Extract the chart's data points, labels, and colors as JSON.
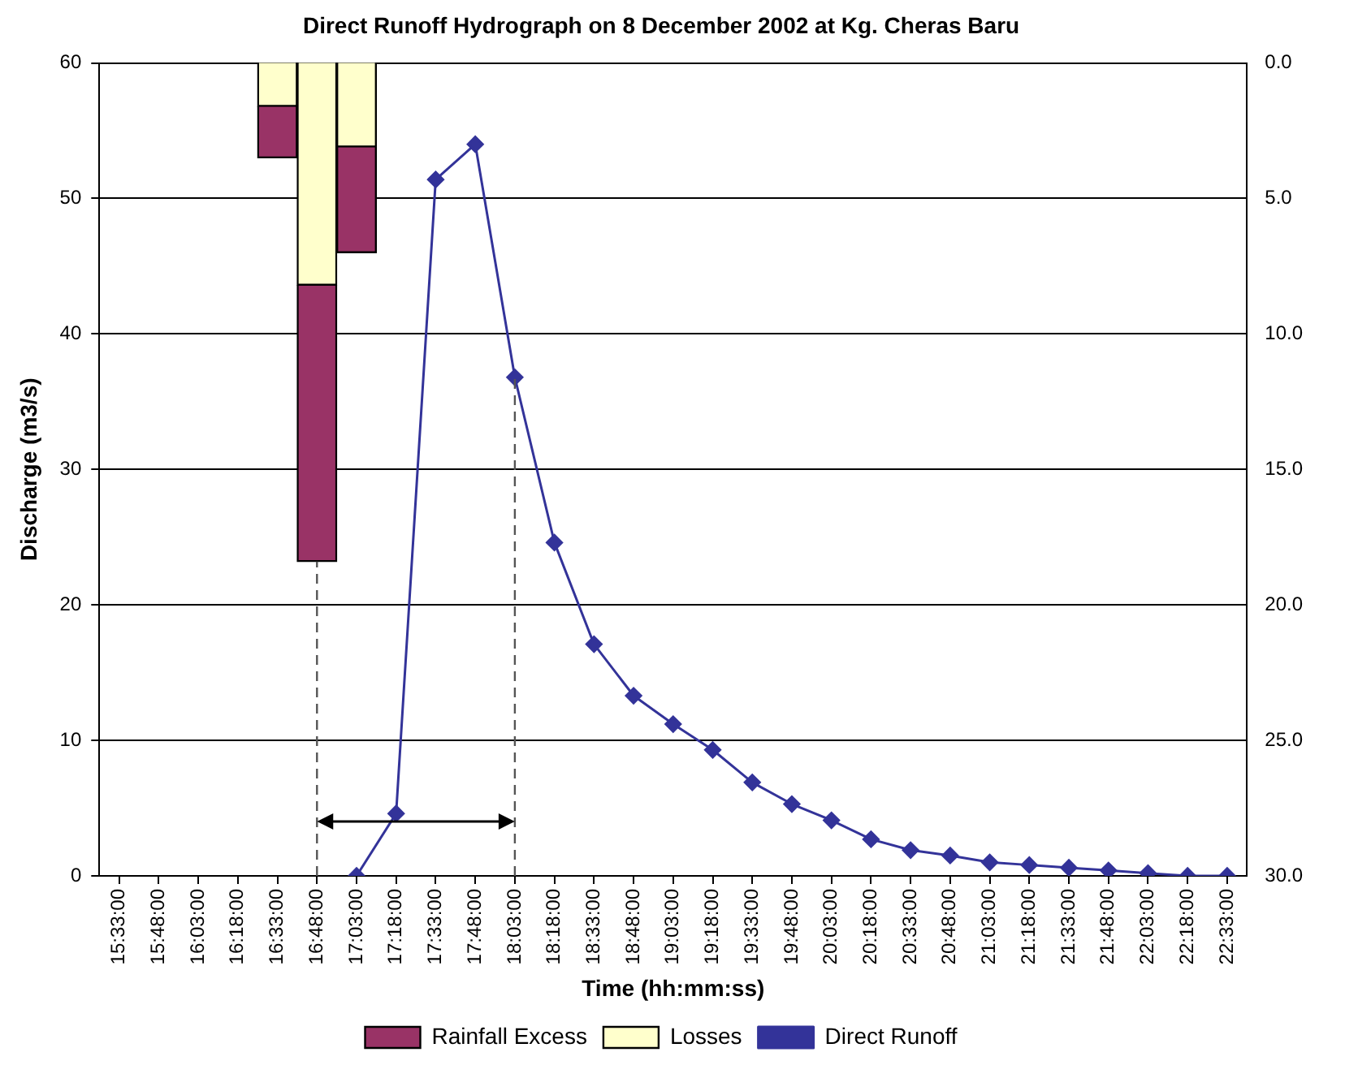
{
  "chart_data": {
    "type": "bar",
    "title": "Direct Runoff Hydrograph on 8 December 2002 at Kg. Cheras Baru",
    "xlabel": "Time (hh:mm:ss)",
    "ylabel": "Discharge (m3/s)",
    "categories": [
      "15:33:00",
      "15:48:00",
      "16:03:00",
      "16:18:00",
      "16:33:00",
      "16:48:00",
      "17:03:00",
      "17:18:00",
      "17:33:00",
      "17:48:00",
      "18:03:00",
      "18:18:00",
      "18:33:00",
      "18:48:00",
      "19:03:00",
      "19:18:00",
      "19:33:00",
      "19:48:00",
      "20:03:00",
      "20:18:00",
      "20:33:00",
      "20:48:00",
      "21:03:00",
      "21:18:00",
      "21:33:00",
      "21:48:00",
      "22:03:00",
      "22:18:00",
      "22:33:00"
    ],
    "series": [
      {
        "name": "Direct Runoff",
        "type": "line",
        "color": "#333399",
        "marker": "diamond",
        "line_style": "solid",
        "values": [
          null,
          null,
          null,
          null,
          null,
          null,
          0,
          4.6,
          51.4,
          54,
          36.8,
          24.6,
          17.1,
          13.3,
          11.2,
          9.3,
          6.9,
          5.3,
          4.1,
          2.7,
          1.9,
          1.5,
          1.0,
          0.8,
          0.6,
          0.4,
          0.2,
          0,
          0
        ]
      },
      {
        "name": "Losses",
        "axis": "y2",
        "color": "#ffffcc",
        "values": [
          null,
          null,
          null,
          null,
          1.6,
          8.2,
          3.1,
          null,
          null,
          null,
          null,
          null,
          null,
          null,
          null,
          null,
          null,
          null,
          null,
          null,
          null,
          null,
          null,
          null,
          null,
          null,
          null,
          null,
          null
        ]
      },
      {
        "name": "Rainfall Excess",
        "axis": "y2",
        "color": "#993366",
        "values": [
          null,
          null,
          null,
          null,
          1.9,
          10.2,
          3.9,
          null,
          null,
          null,
          null,
          null,
          null,
          null,
          null,
          null,
          null,
          null,
          null,
          null,
          null,
          null,
          null,
          null,
          null,
          null,
          null,
          null,
          null
        ]
      }
    ],
    "stacked": true,
    "ylim": [
      0,
      60
    ],
    "yticks": [
      0,
      10,
      20,
      30,
      40,
      50,
      60
    ],
    "y2lim": [
      30,
      0
    ],
    "y2ticks": [
      {
        "value": 0,
        "label": "0.0"
      },
      {
        "value": 5,
        "label": "5.0"
      },
      {
        "value": 10,
        "label": "10.0"
      },
      {
        "value": 15,
        "label": "15.0"
      },
      {
        "value": 20,
        "label": "20.0"
      },
      {
        "value": 25,
        "label": "25.0"
      },
      {
        "value": 30,
        "label": "30.0"
      }
    ],
    "ref_lines": [
      {
        "axis": "x",
        "value": "16:48:00",
        "color": "#555555",
        "line_style": "dashed"
      },
      {
        "axis": "x",
        "value": "18:03:00",
        "color": "#555555",
        "line_style": "dashed"
      }
    ],
    "grid": "y",
    "legend": "bottom"
  }
}
